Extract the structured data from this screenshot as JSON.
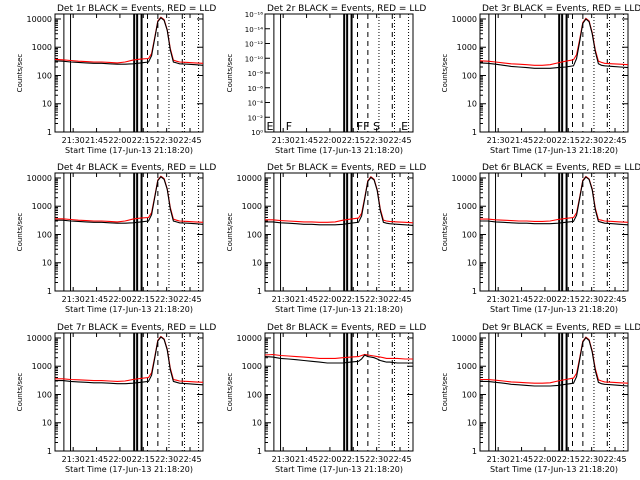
{
  "chart_data": {
    "type": "line",
    "xlabel": "Start Time (17-Jun-13 21:18:20)",
    "ylabel": "Counts/sec",
    "x_ticks": [
      "21:30",
      "21:45",
      "22:00",
      "22:15",
      "22:30",
      "22:45"
    ],
    "x_tick_minutes": [
      11.67,
      26.67,
      41.67,
      56.67,
      71.67,
      86.67
    ],
    "xlim_minutes": [
      0,
      95
    ],
    "y_scale": "log",
    "y_ticks": [
      "1",
      "10",
      "100",
      "1000",
      "10000"
    ],
    "ylim": [
      1,
      15000
    ],
    "detector_2_y_ticks": [
      "10⁰",
      "10⁻²",
      "10⁻⁴",
      "10⁻⁶",
      "10⁻⁸",
      "10⁻¹⁰",
      "10⁻¹²",
      "10⁻¹⁴",
      "10⁻¹⁶"
    ],
    "detector_2_flag_labels": [
      "E",
      "F",
      "FF",
      "S",
      "E"
    ],
    "colors": {
      "events": "#000000",
      "lld": "#ff0000",
      "axes": "#000000"
    },
    "time_minutes": [
      0,
      5,
      10,
      15,
      20,
      25,
      30,
      35,
      40,
      45,
      50,
      55,
      60,
      62,
      64,
      66,
      68,
      70,
      72,
      74,
      76,
      78,
      80,
      85,
      90,
      95
    ],
    "panels": [
      {
        "title": "Det 1r BLACK = Events, RED = LLD",
        "events": [
          330,
          320,
          300,
          290,
          280,
          270,
          270,
          260,
          250,
          250,
          260,
          280,
          300,
          500,
          2000,
          8000,
          11000,
          9000,
          4000,
          800,
          300,
          280,
          260,
          250,
          240,
          230
        ],
        "lld": [
          370,
          360,
          340,
          320,
          310,
          300,
          300,
          290,
          280,
          300,
          350,
          380,
          400,
          600,
          2200,
          8500,
          11500,
          9500,
          4200,
          900,
          350,
          320,
          300,
          290,
          280,
          270
        ]
      },
      {
        "title": "Det 2r BLACK = Events, RED = LLD",
        "events": [],
        "lld": []
      },
      {
        "title": "Det 3r BLACK = Events, RED = LLD",
        "events": [
          280,
          270,
          250,
          230,
          210,
          200,
          190,
          180,
          180,
          180,
          190,
          200,
          220,
          400,
          1600,
          7000,
          10000,
          8000,
          3000,
          700,
          260,
          230,
          220,
          210,
          200,
          190
        ],
        "lld": [
          330,
          320,
          300,
          280,
          260,
          250,
          240,
          230,
          230,
          240,
          280,
          320,
          360,
          550,
          1900,
          7500,
          10500,
          8500,
          3300,
          800,
          320,
          290,
          270,
          260,
          250,
          240
        ]
      },
      {
        "title": "Det 4r BLACK = Events, RED = LLD",
        "events": [
          320,
          320,
          300,
          290,
          280,
          270,
          270,
          260,
          250,
          250,
          260,
          280,
          300,
          500,
          2000,
          8000,
          11000,
          9000,
          4000,
          800,
          300,
          280,
          260,
          250,
          240,
          230
        ],
        "lld": [
          360,
          360,
          340,
          320,
          310,
          300,
          300,
          290,
          280,
          300,
          350,
          380,
          400,
          600,
          2200,
          8500,
          11500,
          9500,
          4200,
          900,
          350,
          320,
          300,
          290,
          280,
          270
        ]
      },
      {
        "title": "Det 5r BLACK = Events, RED = LLD",
        "events": [
          280,
          280,
          260,
          250,
          240,
          230,
          230,
          220,
          220,
          220,
          230,
          250,
          270,
          450,
          1800,
          7500,
          10500,
          8500,
          3600,
          700,
          270,
          250,
          240,
          230,
          220,
          210
        ],
        "lld": [
          330,
          330,
          310,
          300,
          290,
          280,
          280,
          270,
          270,
          280,
          320,
          350,
          380,
          560,
          2000,
          8000,
          11000,
          9000,
          3900,
          800,
          320,
          300,
          290,
          280,
          270,
          260
        ]
      },
      {
        "title": "Det 6r BLACK = Events, RED = LLD",
        "events": [
          300,
          300,
          280,
          270,
          260,
          250,
          250,
          240,
          240,
          240,
          250,
          270,
          290,
          480,
          1900,
          7800,
          10800,
          8800,
          3800,
          750,
          290,
          270,
          250,
          240,
          230,
          220
        ],
        "lld": [
          350,
          350,
          330,
          320,
          310,
          300,
          300,
          290,
          290,
          300,
          340,
          370,
          400,
          590,
          2100,
          8300,
          11300,
          9300,
          4100,
          850,
          340,
          320,
          300,
          290,
          280,
          270
        ]
      },
      {
        "title": "Det 7r BLACK = Events, RED = LLD",
        "events": [
          310,
          310,
          290,
          280,
          270,
          260,
          260,
          250,
          240,
          240,
          250,
          270,
          290,
          480,
          1900,
          7800,
          10800,
          8800,
          3800,
          750,
          290,
          270,
          250,
          240,
          230,
          220
        ],
        "lld": [
          360,
          360,
          340,
          330,
          320,
          310,
          310,
          300,
          290,
          300,
          340,
          370,
          400,
          590,
          2100,
          8300,
          11300,
          9300,
          4100,
          850,
          340,
          320,
          300,
          290,
          280,
          270
        ]
      },
      {
        "title": "Det 8r BLACK = Events, RED = LLD",
        "events": [
          2200,
          2100,
          1900,
          1800,
          1700,
          1600,
          1500,
          1400,
          1300,
          1300,
          1300,
          1400,
          1500,
          1800,
          2500,
          2200,
          2100,
          2000,
          1800,
          1600,
          1500,
          1400,
          1400,
          1300,
          1300,
          1300
        ],
        "lld": [
          2500,
          2600,
          2400,
          2300,
          2200,
          2100,
          2000,
          1900,
          1900,
          1900,
          2000,
          2100,
          2200,
          2400,
          2600,
          2500,
          2400,
          2300,
          2200,
          2100,
          2000,
          1900,
          1900,
          1900,
          1800,
          1800
        ]
      },
      {
        "title": "Det 9r BLACK = Events, RED = LLD",
        "events": [
          290,
          290,
          270,
          250,
          230,
          220,
          210,
          200,
          200,
          200,
          210,
          230,
          250,
          430,
          1700,
          7200,
          10200,
          8200,
          3200,
          700,
          270,
          240,
          230,
          220,
          210,
          200
        ],
        "lld": [
          340,
          340,
          320,
          300,
          280,
          270,
          260,
          250,
          250,
          260,
          300,
          340,
          380,
          560,
          1950,
          7700,
          10700,
          8700,
          3500,
          820,
          330,
          300,
          280,
          270,
          260,
          250
        ]
      }
    ]
  }
}
